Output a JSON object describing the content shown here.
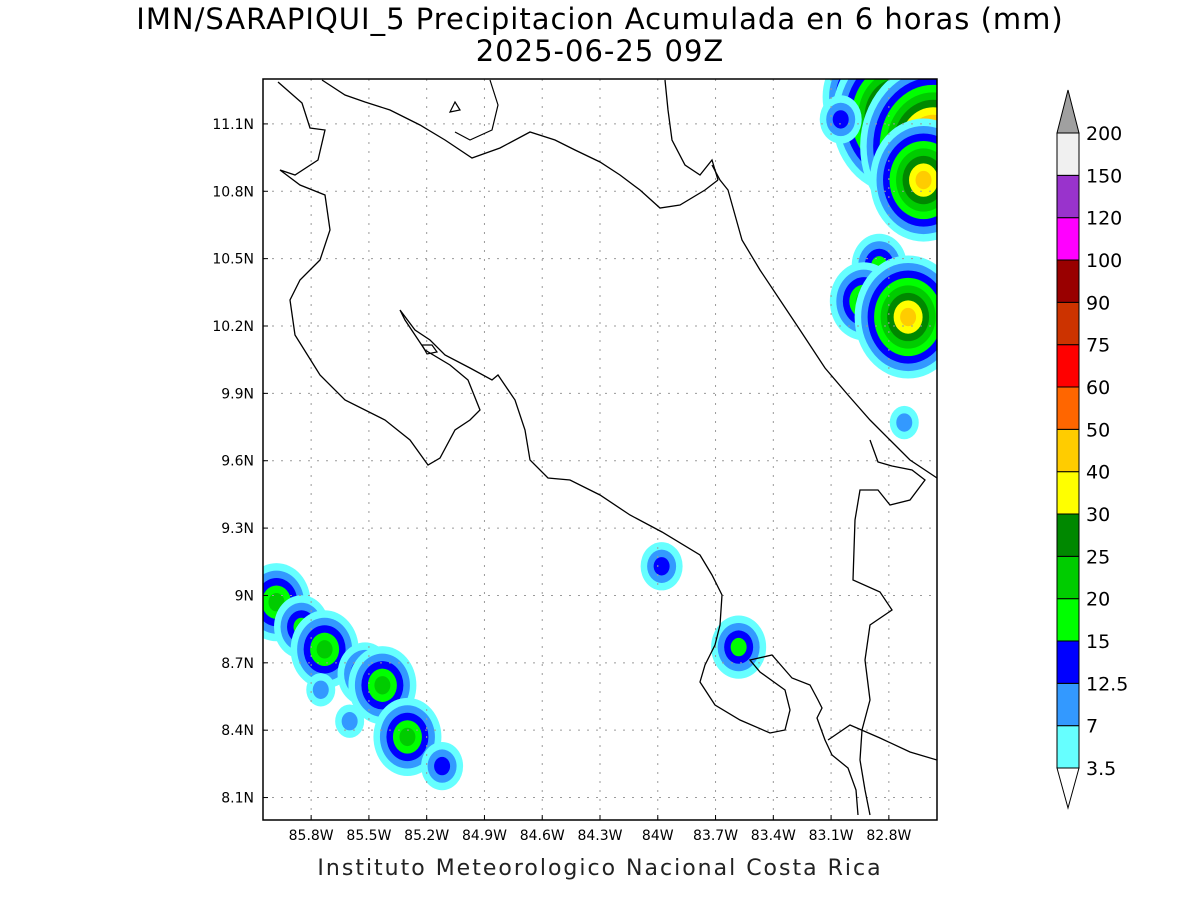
{
  "title": {
    "line1": "IMN/SARAPIQUI_5 Precipitacion Acumulada en 6 horas (mm)",
    "line2": "2025-06-25 09Z"
  },
  "footer": "Instituto Meteorologico Nacional Costa Rica",
  "map": {
    "lon_min": -86.05,
    "lon_max": -82.55,
    "lat_min": 8.0,
    "lat_max": 11.3,
    "lat_ticks": [
      {
        "value": 11.1,
        "label": "11.1N"
      },
      {
        "value": 10.8,
        "label": "10.8N"
      },
      {
        "value": 10.5,
        "label": "10.5N"
      },
      {
        "value": 10.2,
        "label": "10.2N"
      },
      {
        "value": 9.9,
        "label": "9.9N"
      },
      {
        "value": 9.6,
        "label": "9.6N"
      },
      {
        "value": 9.3,
        "label": "9.3N"
      },
      {
        "value": 9.0,
        "label": "9N"
      },
      {
        "value": 8.7,
        "label": "8.7N"
      },
      {
        "value": 8.4,
        "label": "8.4N"
      },
      {
        "value": 8.1,
        "label": "8.1N"
      }
    ],
    "lon_ticks": [
      {
        "value": -85.8,
        "label": "85.8W"
      },
      {
        "value": -85.5,
        "label": "85.5W"
      },
      {
        "value": -85.2,
        "label": "85.2W"
      },
      {
        "value": -84.9,
        "label": "84.9W"
      },
      {
        "value": -84.6,
        "label": "84.6W"
      },
      {
        "value": -84.3,
        "label": "84.3W"
      },
      {
        "value": -84.0,
        "label": "84W"
      },
      {
        "value": -83.7,
        "label": "83.7W"
      },
      {
        "value": -83.4,
        "label": "83.4W"
      },
      {
        "value": -83.1,
        "label": "83.1W"
      },
      {
        "value": -82.8,
        "label": "82.8W"
      }
    ]
  },
  "colorbar": {
    "labels": [
      "3.5",
      "7",
      "12.5",
      "15",
      "20",
      "25",
      "30",
      "40",
      "50",
      "60",
      "75",
      "90",
      "100",
      "120",
      "150",
      "200"
    ],
    "colors": [
      "#66ffff",
      "#3399ff",
      "#0000ff",
      "#00ff00",
      "#00cc00",
      "#008800",
      "#ffff00",
      "#ffcc00",
      "#ff6600",
      "#ff0000",
      "#cc3300",
      "#990000",
      "#ff00ff",
      "#9933cc",
      "#f0f0f0"
    ],
    "low_color": "#ffffff",
    "high_color": "#a0a0a0"
  },
  "precip_cells": [
    {
      "lon": -85.98,
      "lat": 8.97,
      "level": 4
    },
    {
      "lon": -85.85,
      "lat": 8.86,
      "level": 3
    },
    {
      "lon": -85.73,
      "lat": 8.76,
      "level": 4
    },
    {
      "lon": -85.75,
      "lat": 8.58,
      "level": 1
    },
    {
      "lon": -85.52,
      "lat": 8.65,
      "level": 3
    },
    {
      "lon": -85.43,
      "lat": 8.6,
      "level": 4
    },
    {
      "lon": -85.3,
      "lat": 8.37,
      "level": 4
    },
    {
      "lon": -85.6,
      "lat": 8.44,
      "level": 1
    },
    {
      "lon": -85.12,
      "lat": 8.24,
      "level": 2
    },
    {
      "lon": -83.98,
      "lat": 9.13,
      "level": 2
    },
    {
      "lon": -83.58,
      "lat": 8.77,
      "level": 3
    },
    {
      "lon": -82.9,
      "lat": 11.22,
      "level": 6
    },
    {
      "lon": -82.75,
      "lat": 11.13,
      "level": 9
    },
    {
      "lon": -82.57,
      "lat": 11.0,
      "level": 10
    },
    {
      "lon": -82.62,
      "lat": 10.85,
      "level": 7
    },
    {
      "lon": -83.05,
      "lat": 11.12,
      "level": 2
    },
    {
      "lon": -82.85,
      "lat": 10.47,
      "level": 3
    },
    {
      "lon": -82.93,
      "lat": 10.31,
      "level": 4
    },
    {
      "lon": -82.7,
      "lat": 10.24,
      "level": 7
    },
    {
      "lon": -82.72,
      "lat": 9.77,
      "level": 1
    }
  ]
}
